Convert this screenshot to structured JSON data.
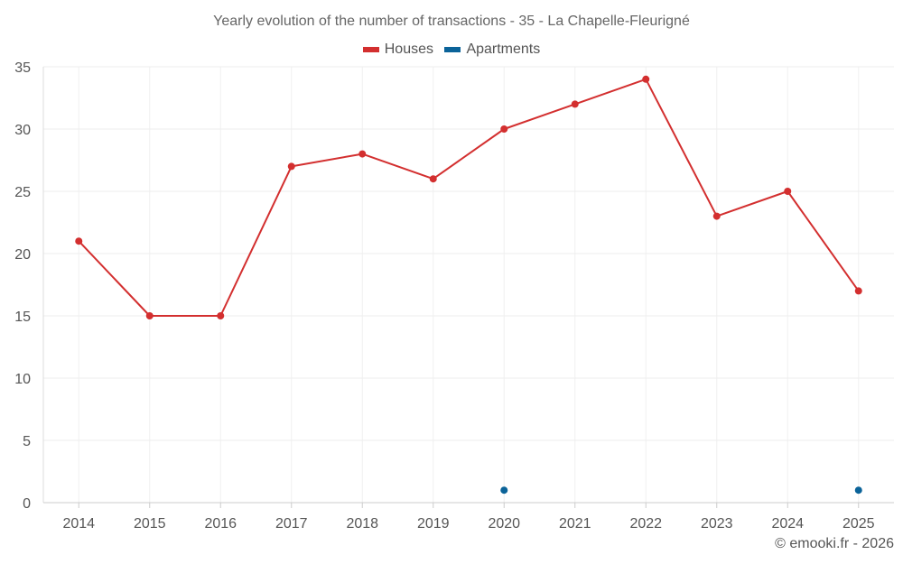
{
  "chart_data": {
    "type": "line",
    "title": "Yearly evolution of the number of transactions - 35 - La Chapelle-Fleurigné",
    "categories": [
      "2014",
      "2015",
      "2016",
      "2017",
      "2018",
      "2019",
      "2020",
      "2021",
      "2022",
      "2023",
      "2024",
      "2025"
    ],
    "series": [
      {
        "name": "Houses",
        "color": "#d32f2f",
        "values": [
          21,
          15,
          15,
          27,
          28,
          26,
          30,
          32,
          34,
          23,
          25,
          17
        ]
      },
      {
        "name": "Apartments",
        "color": "#0b6399",
        "values": [
          null,
          null,
          null,
          null,
          null,
          null,
          1,
          null,
          null,
          null,
          null,
          1
        ]
      }
    ],
    "ylim": [
      0,
      35
    ],
    "yticks": [
      0,
      5,
      10,
      15,
      20,
      25,
      30,
      35
    ],
    "xlabel": "",
    "ylabel": "",
    "grid": true,
    "legend_position": "top-center"
  },
  "credit": "© emooki.fr - 2026"
}
